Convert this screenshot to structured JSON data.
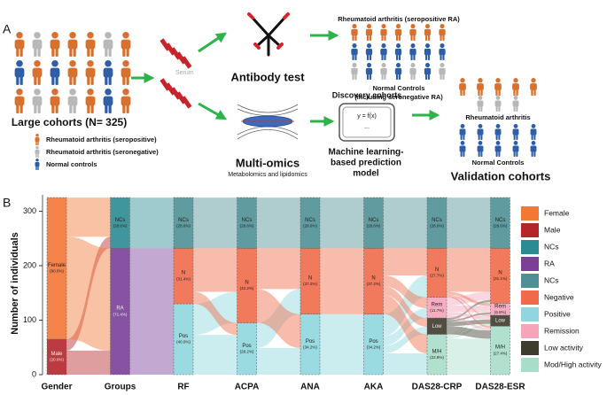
{
  "panel_a": {
    "label": "A",
    "serum": "Serum",
    "cohort_title": "Large cohorts (N= 325)",
    "legend": [
      "Rheumatoid arthritis  (seropositive)",
      "Rheumatoid arthritis  (seronegative)",
      "Normal controls"
    ],
    "antibody_test": "Antibody test",
    "seropositive_title": "Rheumatoid arthritis  (seropositive RA)",
    "normal_controls_title": [
      "Normal Controls",
      "(including seronegative RA)"
    ],
    "multi_omics": "Multi-omics",
    "multi_omics_sub": "Metabolomics and lipidomics",
    "discovery": "Discovery cohorts",
    "formula": "y = f(x)",
    "ellipsis": "...",
    "model": [
      "Machine learning-",
      "based prediction",
      "model"
    ],
    "validation_ra": "Rheumatoid arthritis",
    "validation_nc": "Normal Controls",
    "validation": "Validation cohorts"
  },
  "chart_data": {
    "type": "alluvial",
    "panel_label": "B",
    "y_label": "Number of individuals",
    "ylim": [
      0,
      330
    ],
    "yticks": [
      0,
      100,
      200,
      300
    ],
    "columns": [
      {
        "name": "Gender",
        "segments": [
          {
            "name": "Male",
            "label": "(20.0%)",
            "value": 65,
            "color": "#b5262b",
            "out": [
              44,
              21
            ]
          },
          {
            "name": "Female",
            "label": "(80.0%)",
            "value": 260,
            "color": "#f37735",
            "out": [
              188,
              72
            ]
          }
        ]
      },
      {
        "name": "Groups",
        "segments": [
          {
            "name": "RA",
            "label": "(71.4%)",
            "value": 232,
            "color": "#7b3f98",
            "out": [
              130,
              102,
              0
            ]
          },
          {
            "name": "NCs",
            "label": "(28.6%)",
            "value": 93,
            "color": "#2b8b92",
            "out": [
              0,
              0,
              93
            ]
          }
        ]
      },
      {
        "name": "RF",
        "segments": [
          {
            "name": "Pos",
            "label": "(40.0%)",
            "value": 130,
            "color": "#8fd6de",
            "out": [
              73,
              57,
              0
            ]
          },
          {
            "name": "N",
            "label": "(31.4%)",
            "value": 102,
            "color": "#f06a4a",
            "out": [
              22,
              80,
              0
            ]
          },
          {
            "name": "NCs",
            "label": "(28.6%)",
            "value": 93,
            "color": "#4e9095",
            "out": [
              0,
              0,
              93
            ]
          }
        ]
      },
      {
        "name": "ACPA",
        "segments": [
          {
            "name": "Pos",
            "label": "(29.2%)",
            "value": 95,
            "color": "#8fd6de",
            "out": [
              49,
              46,
              0
            ]
          },
          {
            "name": "N",
            "label": "(42.2%)",
            "value": 137,
            "color": "#f06a4a",
            "out": [
              62,
              75,
              0
            ]
          },
          {
            "name": "NCs",
            "label": "(28.6%)",
            "value": 93,
            "color": "#4e9095",
            "out": [
              0,
              0,
              93
            ]
          }
        ]
      },
      {
        "name": "ANA",
        "segments": [
          {
            "name": "Pos",
            "label": "(34.2%)",
            "value": 111,
            "color": "#8fd6de",
            "out": [
              111,
              0,
              0
            ]
          },
          {
            "name": "N",
            "label": "(37.2%)",
            "value": 121,
            "color": "#f06a4a",
            "out": [
              0,
              121,
              0
            ]
          },
          {
            "name": "NCs",
            "label": "(28.6%)",
            "value": 93,
            "color": "#4e9095",
            "out": [
              0,
              0,
              93
            ]
          }
        ]
      },
      {
        "name": "AKA",
        "segments": [
          {
            "name": "Pos",
            "label": "(34.2%)",
            "value": 111,
            "color": "#8fd6de",
            "out": [
              39,
              14,
              18,
              40,
              0
            ]
          },
          {
            "name": "N",
            "label": "(37.2%)",
            "value": 121,
            "color": "#f06a4a",
            "out": [
              35,
              16,
              20,
              50,
              0
            ]
          },
          {
            "name": "NCs",
            "label": "(28.6%)",
            "value": 93,
            "color": "#4e9095",
            "out": [
              0,
              0,
              0,
              0,
              93
            ]
          }
        ]
      },
      {
        "name": "DAS28-CRP",
        "segments": [
          {
            "name": "M/H",
            "label": "(22.8%)",
            "value": 74,
            "color": "#a8ddc9",
            "out": [
              66,
              4,
              2,
              2,
              0
            ]
          },
          {
            "name": "Low",
            "value": 30,
            "color": "#3e3a2c",
            "out": [
              15,
              8,
              3,
              4,
              0
            ]
          },
          {
            "name": "Rem",
            "label": "(11.7%)",
            "value": 38,
            "color": "#f5a4ba",
            "out": [
              5,
              6,
              12,
              15,
              0
            ]
          },
          {
            "name": "N",
            "label": "(27.7%)",
            "value": 90,
            "color": "#f06a4a",
            "out": [
              3,
              2,
              5,
              80,
              0
            ]
          },
          {
            "name": "NCs",
            "label": "(28.6%)",
            "value": 93,
            "color": "#4e9095",
            "out": [
              0,
              0,
              0,
              0,
              93
            ]
          }
        ]
      },
      {
        "name": "DAS28-ESR",
        "segments": [
          {
            "name": "M/H",
            "label": "(27.4%)",
            "value": 89,
            "color": "#a8ddc9"
          },
          {
            "name": "Low",
            "value": 20,
            "color": "#3e3a2c"
          },
          {
            "name": "Rem",
            "label": "(6.8%)",
            "value": 22,
            "color": "#f5a4ba"
          },
          {
            "name": "N",
            "label": "(31.1%)",
            "value": 101,
            "color": "#f06a4a"
          },
          {
            "name": "NCs",
            "label": "(28.6%)",
            "value": 93,
            "color": "#4e9095"
          }
        ]
      }
    ],
    "legend": [
      {
        "name": "Female",
        "color": "#f37735"
      },
      {
        "name": "Male",
        "color": "#b5262b"
      },
      {
        "name": "NCs",
        "color": "#2b8b92"
      },
      {
        "name": "RA",
        "color": "#7b3f98"
      },
      {
        "name": "NCs",
        "color": "#4e9095"
      },
      {
        "name": "Negative",
        "color": "#f06a4a"
      },
      {
        "name": "Positive",
        "color": "#8fd6de"
      },
      {
        "name": "Remission",
        "color": "#f5a4ba"
      },
      {
        "name": "Low activity",
        "color": "#3e3a2c"
      },
      {
        "name": "Mod/High activity",
        "color": "#a8ddc9"
      }
    ]
  }
}
